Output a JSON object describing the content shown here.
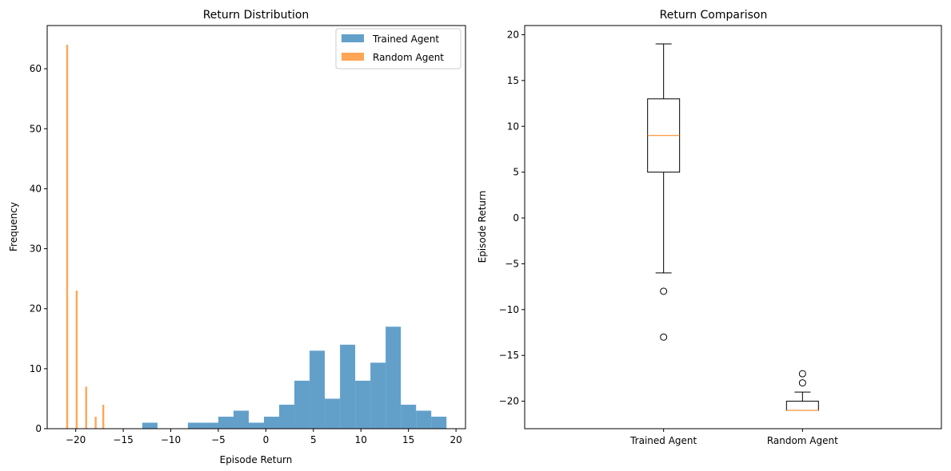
{
  "chart_data": [
    {
      "type": "histogram",
      "title": "Return Distribution",
      "xlabel": "Episode Return",
      "ylabel": "Frequency",
      "xlim": [
        -23.0,
        21.0
      ],
      "ylim": [
        0,
        67.2
      ],
      "xticks": [
        -20,
        -15,
        -10,
        -5,
        0,
        5,
        10,
        15,
        20
      ],
      "yticks": [
        0,
        10,
        20,
        30,
        40,
        50,
        60
      ],
      "legend_position": "top-right",
      "series": [
        {
          "name": "Trained Agent",
          "color": "#1f77b4",
          "opacity": 0.7,
          "bins": [
            [
              -13.0,
              -11.4,
              1
            ],
            [
              -11.4,
              -9.8,
              0
            ],
            [
              -9.8,
              -8.2,
              0
            ],
            [
              -8.2,
              -6.6,
              1
            ],
            [
              -6.6,
              -5.0,
              1
            ],
            [
              -5.0,
              -3.4,
              2
            ],
            [
              -3.4,
              -1.8,
              3
            ],
            [
              -1.8,
              -0.2,
              1
            ],
            [
              -0.2,
              1.4,
              2
            ],
            [
              1.4,
              3.0,
              4
            ],
            [
              3.0,
              4.6,
              8
            ],
            [
              4.6,
              6.2,
              13
            ],
            [
              6.2,
              7.8,
              5
            ],
            [
              7.8,
              9.4,
              14
            ],
            [
              9.4,
              11.0,
              8
            ],
            [
              11.0,
              12.6,
              11
            ],
            [
              12.6,
              14.2,
              17
            ],
            [
              14.2,
              15.8,
              4
            ],
            [
              15.8,
              17.4,
              3
            ],
            [
              17.4,
              19.0,
              2
            ]
          ]
        },
        {
          "name": "Random Agent",
          "color": "#ff7f0e",
          "opacity": 0.7,
          "bins": [
            [
              -21.0,
              -20.8,
              64
            ],
            [
              -20.8,
              -20.6,
              0
            ],
            [
              -20.6,
              -20.4,
              0
            ],
            [
              -20.4,
              -20.2,
              0
            ],
            [
              -20.2,
              -20.0,
              0
            ],
            [
              -20.0,
              -19.8,
              23
            ],
            [
              -19.8,
              -19.6,
              0
            ],
            [
              -19.6,
              -19.4,
              0
            ],
            [
              -19.4,
              -19.2,
              0
            ],
            [
              -19.2,
              -19.0,
              0
            ],
            [
              -19.0,
              -18.8,
              7
            ],
            [
              -18.8,
              -18.6,
              0
            ],
            [
              -18.6,
              -18.4,
              0
            ],
            [
              -18.4,
              -18.2,
              0
            ],
            [
              -18.2,
              -18.0,
              0
            ],
            [
              -18.0,
              -17.8,
              2
            ],
            [
              -17.8,
              -17.6,
              0
            ],
            [
              -17.6,
              -17.4,
              0
            ],
            [
              -17.4,
              -17.2,
              0
            ],
            [
              -17.2,
              -17.0,
              4
            ]
          ]
        }
      ]
    },
    {
      "type": "boxplot",
      "title": "Return Comparison",
      "xlabel": "",
      "ylabel": "Episode Return",
      "ylim": [
        -23.0,
        21.0
      ],
      "yticks": [
        -20,
        -15,
        -10,
        -5,
        0,
        5,
        10,
        15,
        20
      ],
      "categories": [
        "Trained Agent",
        "Random Agent"
      ],
      "boxes": [
        {
          "name": "Trained Agent",
          "whisker_low": -6,
          "q1": 5,
          "median": 9,
          "q3": 13,
          "whisker_high": 19,
          "outliers": [
            -8,
            -13
          ]
        },
        {
          "name": "Random Agent",
          "whisker_low": -21,
          "q1": -21,
          "median": -21,
          "q3": -20,
          "whisker_high": -19,
          "outliers": [
            -17,
            -18
          ]
        }
      ],
      "median_color": "#ff7f0e"
    }
  ]
}
